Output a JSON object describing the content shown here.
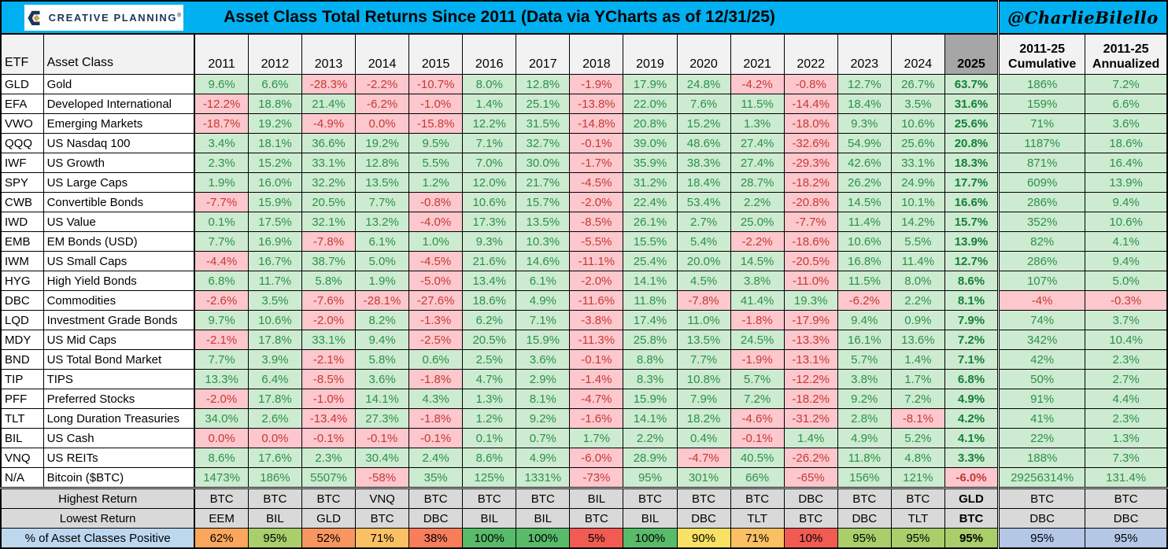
{
  "header": {
    "logo": {
      "icon": "creative-planning-c-icon",
      "brand": "CREATIVE PLANNING",
      "mark": "®"
    },
    "title": "Asset Class Total Returns Since 2011 (Data via YCharts as of 12/31/25)",
    "handle": "@CharlieBilello"
  },
  "colors": {
    "title_bar": "#00B0F0",
    "positive_fill": "#CDEBD1",
    "positive_text": "#2B9148",
    "negative_fill": "#FCC7CD",
    "negative_text": "#C43A35",
    "header_gray": "#F2F2F2",
    "col2025_gray": "#A6A6A6",
    "summary_gray": "#D9D9D9",
    "label_blue": "#BDD7EE",
    "blue_cell": "#B4C7E7",
    "logo_navy": "#1B365D",
    "logo_gold": "#C8A353"
  },
  "chart_data": {
    "type": "table",
    "title": "Asset Class Total Returns Since 2011 (Data via YCharts as of 12/31/25)",
    "columns": [
      "ETF",
      "Asset Class",
      "2011",
      "2012",
      "2013",
      "2014",
      "2015",
      "2016",
      "2017",
      "2018",
      "2019",
      "2020",
      "2021",
      "2022",
      "2023",
      "2024",
      "2025",
      "2011-25 Cumulative",
      "2011-25 Annualized"
    ],
    "rows": [
      {
        "etf": "GLD",
        "asset_class": "Gold",
        "values": [
          "9.6%",
          "6.6%",
          "-28.3%",
          "-2.2%",
          "-10.7%",
          "8.0%",
          "12.8%",
          "-1.9%",
          "17.9%",
          "24.8%",
          "-4.2%",
          "-0.8%",
          "12.7%",
          "26.7%",
          "63.7%",
          "186%",
          "7.2%"
        ]
      },
      {
        "etf": "EFA",
        "asset_class": "Developed International",
        "values": [
          "-12.2%",
          "18.8%",
          "21.4%",
          "-6.2%",
          "-1.0%",
          "1.4%",
          "25.1%",
          "-13.8%",
          "22.0%",
          "7.6%",
          "11.5%",
          "-14.4%",
          "18.4%",
          "3.5%",
          "31.6%",
          "159%",
          "6.6%"
        ]
      },
      {
        "etf": "VWO",
        "asset_class": "Emerging Markets",
        "values": [
          "-18.7%",
          "19.2%",
          "-4.9%",
          "0.0%",
          "-15.8%",
          "12.2%",
          "31.5%",
          "-14.8%",
          "20.8%",
          "15.2%",
          "1.3%",
          "-18.0%",
          "9.3%",
          "10.6%",
          "25.6%",
          "71%",
          "3.6%"
        ]
      },
      {
        "etf": "QQQ",
        "asset_class": "US Nasdaq 100",
        "values": [
          "3.4%",
          "18.1%",
          "36.6%",
          "19.2%",
          "9.5%",
          "7.1%",
          "32.7%",
          "-0.1%",
          "39.0%",
          "48.6%",
          "27.4%",
          "-32.6%",
          "54.9%",
          "25.6%",
          "20.8%",
          "1187%",
          "18.6%"
        ]
      },
      {
        "etf": "IWF",
        "asset_class": "US Growth",
        "values": [
          "2.3%",
          "15.2%",
          "33.1%",
          "12.8%",
          "5.5%",
          "7.0%",
          "30.0%",
          "-1.7%",
          "35.9%",
          "38.3%",
          "27.4%",
          "-29.3%",
          "42.6%",
          "33.1%",
          "18.3%",
          "871%",
          "16.4%"
        ]
      },
      {
        "etf": "SPY",
        "asset_class": "US Large Caps",
        "values": [
          "1.9%",
          "16.0%",
          "32.2%",
          "13.5%",
          "1.2%",
          "12.0%",
          "21.7%",
          "-4.5%",
          "31.2%",
          "18.4%",
          "28.7%",
          "-18.2%",
          "26.2%",
          "24.9%",
          "17.7%",
          "609%",
          "13.9%"
        ]
      },
      {
        "etf": "CWB",
        "asset_class": "Convertible Bonds",
        "values": [
          "-7.7%",
          "15.9%",
          "20.5%",
          "7.7%",
          "-0.8%",
          "10.6%",
          "15.7%",
          "-2.0%",
          "22.4%",
          "53.4%",
          "2.2%",
          "-20.8%",
          "14.5%",
          "10.1%",
          "16.6%",
          "286%",
          "9.4%"
        ]
      },
      {
        "etf": "IWD",
        "asset_class": "US Value",
        "values": [
          "0.1%",
          "17.5%",
          "32.1%",
          "13.2%",
          "-4.0%",
          "17.3%",
          "13.5%",
          "-8.5%",
          "26.1%",
          "2.7%",
          "25.0%",
          "-7.7%",
          "11.4%",
          "14.2%",
          "15.7%",
          "352%",
          "10.6%"
        ]
      },
      {
        "etf": "EMB",
        "asset_class": "EM Bonds (USD)",
        "values": [
          "7.7%",
          "16.9%",
          "-7.8%",
          "6.1%",
          "1.0%",
          "9.3%",
          "10.3%",
          "-5.5%",
          "15.5%",
          "5.4%",
          "-2.2%",
          "-18.6%",
          "10.6%",
          "5.5%",
          "13.9%",
          "82%",
          "4.1%"
        ]
      },
      {
        "etf": "IWM",
        "asset_class": "US Small Caps",
        "values": [
          "-4.4%",
          "16.7%",
          "38.7%",
          "5.0%",
          "-4.5%",
          "21.6%",
          "14.6%",
          "-11.1%",
          "25.4%",
          "20.0%",
          "14.5%",
          "-20.5%",
          "16.8%",
          "11.4%",
          "12.7%",
          "286%",
          "9.4%"
        ]
      },
      {
        "etf": "HYG",
        "asset_class": "High Yield Bonds",
        "values": [
          "6.8%",
          "11.7%",
          "5.8%",
          "1.9%",
          "-5.0%",
          "13.4%",
          "6.1%",
          "-2.0%",
          "14.1%",
          "4.5%",
          "3.8%",
          "-11.0%",
          "11.5%",
          "8.0%",
          "8.6%",
          "107%",
          "5.0%"
        ]
      },
      {
        "etf": "DBC",
        "asset_class": "Commodities",
        "values": [
          "-2.6%",
          "3.5%",
          "-7.6%",
          "-28.1%",
          "-27.6%",
          "18.6%",
          "4.9%",
          "-11.6%",
          "11.8%",
          "-7.8%",
          "41.4%",
          "19.3%",
          "-6.2%",
          "2.2%",
          "8.1%",
          "-4%",
          "-0.3%"
        ]
      },
      {
        "etf": "LQD",
        "asset_class": "Investment Grade Bonds",
        "values": [
          "9.7%",
          "10.6%",
          "-2.0%",
          "8.2%",
          "-1.3%",
          "6.2%",
          "7.1%",
          "-3.8%",
          "17.4%",
          "11.0%",
          "-1.8%",
          "-17.9%",
          "9.4%",
          "0.9%",
          "7.9%",
          "74%",
          "3.7%"
        ]
      },
      {
        "etf": "MDY",
        "asset_class": "US Mid Caps",
        "values": [
          "-2.1%",
          "17.8%",
          "33.1%",
          "9.4%",
          "-2.5%",
          "20.5%",
          "15.9%",
          "-11.3%",
          "25.8%",
          "13.5%",
          "24.5%",
          "-13.3%",
          "16.1%",
          "13.6%",
          "7.2%",
          "342%",
          "10.4%"
        ]
      },
      {
        "etf": "BND",
        "asset_class": "US Total Bond Market",
        "values": [
          "7.7%",
          "3.9%",
          "-2.1%",
          "5.8%",
          "0.6%",
          "2.5%",
          "3.6%",
          "-0.1%",
          "8.8%",
          "7.7%",
          "-1.9%",
          "-13.1%",
          "5.7%",
          "1.4%",
          "7.1%",
          "42%",
          "2.3%"
        ]
      },
      {
        "etf": "TIP",
        "asset_class": "TIPS",
        "values": [
          "13.3%",
          "6.4%",
          "-8.5%",
          "3.6%",
          "-1.8%",
          "4.7%",
          "2.9%",
          "-1.4%",
          "8.3%",
          "10.8%",
          "5.7%",
          "-12.2%",
          "3.8%",
          "1.7%",
          "6.8%",
          "50%",
          "2.7%"
        ]
      },
      {
        "etf": "PFF",
        "asset_class": "Preferred Stocks",
        "values": [
          "-2.0%",
          "17.8%",
          "-1.0%",
          "14.1%",
          "4.3%",
          "1.3%",
          "8.1%",
          "-4.7%",
          "15.9%",
          "7.9%",
          "7.2%",
          "-18.2%",
          "9.2%",
          "7.2%",
          "4.9%",
          "91%",
          "4.4%"
        ]
      },
      {
        "etf": "TLT",
        "asset_class": "Long Duration Treasuries",
        "values": [
          "34.0%",
          "2.6%",
          "-13.4%",
          "27.3%",
          "-1.8%",
          "1.2%",
          "9.2%",
          "-1.6%",
          "14.1%",
          "18.2%",
          "-4.6%",
          "-31.2%",
          "2.8%",
          "-8.1%",
          "4.2%",
          "41%",
          "2.3%"
        ]
      },
      {
        "etf": "BIL",
        "asset_class": "US Cash",
        "values": [
          "0.0%",
          "0.0%",
          "-0.1%",
          "-0.1%",
          "-0.1%",
          "0.1%",
          "0.7%",
          "1.7%",
          "2.2%",
          "0.4%",
          "-0.1%",
          "1.4%",
          "4.9%",
          "5.2%",
          "4.1%",
          "22%",
          "1.3%"
        ]
      },
      {
        "etf": "VNQ",
        "asset_class": "US REITs",
        "values": [
          "8.6%",
          "17.6%",
          "2.3%",
          "30.4%",
          "2.4%",
          "8.6%",
          "4.9%",
          "-6.0%",
          "28.9%",
          "-4.7%",
          "40.5%",
          "-26.2%",
          "11.8%",
          "4.8%",
          "3.3%",
          "188%",
          "7.3%"
        ]
      },
      {
        "etf": "N/A",
        "asset_class": "Bitcoin ($BTC)",
        "values": [
          "1473%",
          "186%",
          "5507%",
          "-58%",
          "35%",
          "125%",
          "1331%",
          "-73%",
          "95%",
          "301%",
          "66%",
          "-65%",
          "156%",
          "121%",
          "-6.0%",
          "29256314%",
          "131.4%"
        ]
      }
    ],
    "summary": {
      "highest_return": {
        "label": "Highest Return",
        "values": [
          "BTC",
          "BTC",
          "BTC",
          "VNQ",
          "BTC",
          "BTC",
          "BTC",
          "BIL",
          "BTC",
          "BTC",
          "BTC",
          "DBC",
          "BTC",
          "BTC",
          "GLD",
          "BTC",
          "BTC"
        ]
      },
      "lowest_return": {
        "label": "Lowest Return",
        "values": [
          "EEM",
          "BIL",
          "GLD",
          "BTC",
          "DBC",
          "BIL",
          "BIL",
          "BTC",
          "BIL",
          "DBC",
          "TLT",
          "BTC",
          "DBC",
          "TLT",
          "BTC",
          "DBC",
          "DBC"
        ]
      },
      "pct_positive": {
        "label": "% of Asset Classes Positive",
        "values": [
          "62%",
          "95%",
          "52%",
          "71%",
          "38%",
          "100%",
          "100%",
          "5%",
          "100%",
          "90%",
          "71%",
          "10%",
          "95%",
          "95%",
          "95%",
          "95%",
          "95%"
        ],
        "colors": [
          "#FAA65B",
          "#A9CE6A",
          "#F8965F",
          "#FBC064",
          "#F87D5B",
          "#57BB6A",
          "#57BB6A",
          "#F25B52",
          "#57BB6A",
          "#F8E164",
          "#FBC064",
          "#F25B52",
          "#A9CE6A",
          "#A9CE6A",
          "#A9CE6A",
          "#B4C7E7",
          "#B4C7E7"
        ]
      }
    }
  }
}
